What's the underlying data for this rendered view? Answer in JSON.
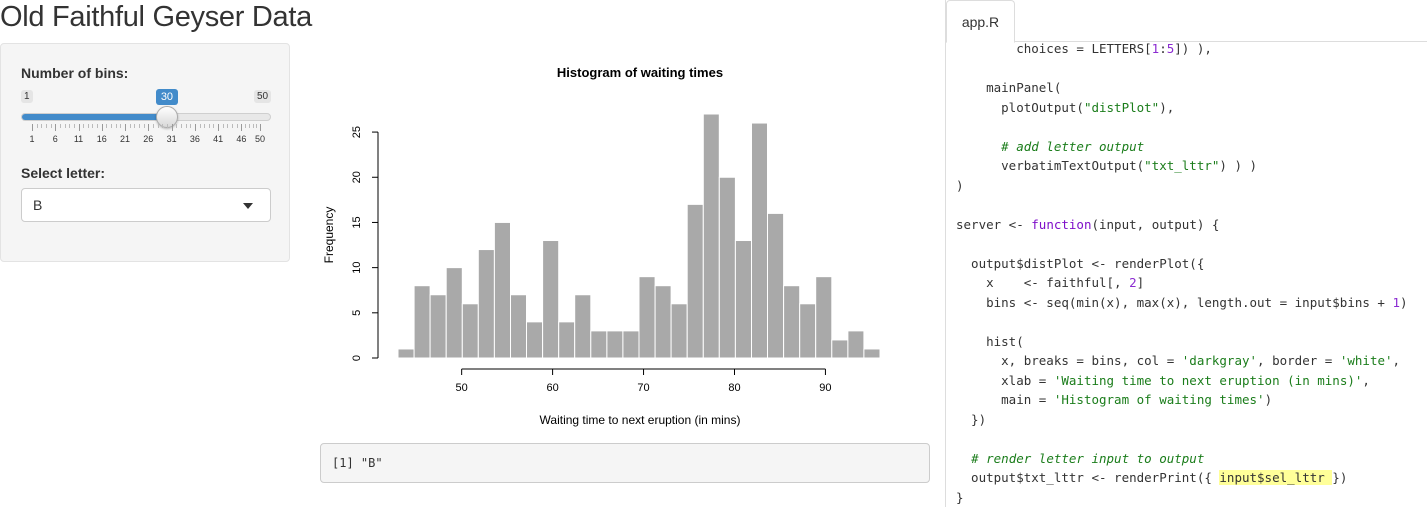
{
  "app": {
    "title": "Old Faithful Geyser Data"
  },
  "sidebar": {
    "bins_label": "Number of bins:",
    "slider": {
      "min": 1,
      "max": 50,
      "value": 30,
      "min_label": "1",
      "max_label": "50",
      "value_label": "30",
      "tick_labels": [
        "1",
        "6",
        "11",
        "16",
        "21",
        "26",
        "31",
        "36",
        "41",
        "46",
        "50"
      ],
      "accent_color": "#428bca"
    },
    "letter_label": "Select letter:",
    "select": {
      "value": "B",
      "caret_icon": "caret-down-icon"
    }
  },
  "chart_data": {
    "type": "bar",
    "title": "Histogram of waiting times",
    "xlabel": "Waiting time to next eruption (in mins)",
    "ylabel": "Frequency",
    "bin_edges": [
      43.0,
      44.77,
      46.53,
      48.3,
      50.07,
      51.83,
      53.6,
      55.37,
      57.13,
      58.9,
      60.67,
      62.43,
      64.2,
      65.97,
      67.73,
      69.5,
      71.27,
      73.03,
      74.8,
      76.57,
      78.33,
      80.1,
      81.87,
      83.63,
      85.4,
      87.17,
      88.93,
      90.7,
      92.47,
      94.23,
      96.0
    ],
    "values": [
      1,
      8,
      7,
      10,
      6,
      12,
      15,
      7,
      4,
      13,
      4,
      7,
      3,
      3,
      3,
      9,
      8,
      6,
      17,
      27,
      20,
      13,
      26,
      16,
      8,
      6,
      9,
      2,
      3,
      1
    ],
    "x_ticks": [
      50,
      60,
      70,
      80,
      90
    ],
    "y_ticks": [
      0,
      5,
      10,
      15,
      20,
      25
    ],
    "xlim": [
      43,
      96
    ],
    "ylim": [
      0,
      27
    ],
    "bar_color": "#a9a9a9",
    "border_color": "#ffffff"
  },
  "output": {
    "text": "[1] \"B\""
  },
  "code_panel": {
    "tab_label": "app.R",
    "lines": [
      [
        {
          "t": "        choices = LETTERS["
        },
        {
          "t": "1",
          "c": "c-num"
        },
        {
          "t": ":"
        },
        {
          "t": "5",
          "c": "c-num"
        },
        {
          "t": "]) ),"
        }
      ],
      [
        {
          "t": ""
        }
      ],
      [
        {
          "t": "    mainPanel("
        }
      ],
      [
        {
          "t": "      plotOutput("
        },
        {
          "t": "\"distPlot\"",
          "c": "c-str"
        },
        {
          "t": "),"
        }
      ],
      [
        {
          "t": ""
        }
      ],
      [
        {
          "t": "      "
        },
        {
          "t": "# add letter output",
          "c": "c-cmt"
        }
      ],
      [
        {
          "t": "      verbatimTextOutput("
        },
        {
          "t": "\"txt_lttr\"",
          "c": "c-str"
        },
        {
          "t": ") ) )"
        }
      ],
      [
        {
          "t": ")"
        }
      ],
      [
        {
          "t": ""
        }
      ],
      [
        {
          "t": "server <- "
        },
        {
          "t": "function",
          "c": "c-fn"
        },
        {
          "t": "(input, output) {"
        }
      ],
      [
        {
          "t": ""
        }
      ],
      [
        {
          "t": "  output$distPlot <- renderPlot({"
        }
      ],
      [
        {
          "t": "    x    <- faithful[, "
        },
        {
          "t": "2",
          "c": "c-num"
        },
        {
          "t": "]"
        }
      ],
      [
        {
          "t": "    bins <- seq(min(x), max(x), length.out = input$bins + "
        },
        {
          "t": "1",
          "c": "c-num"
        },
        {
          "t": ")"
        }
      ],
      [
        {
          "t": ""
        }
      ],
      [
        {
          "t": "    hist("
        }
      ],
      [
        {
          "t": "      x, breaks = bins, col = "
        },
        {
          "t": "'darkgray'",
          "c": "c-str"
        },
        {
          "t": ", border = "
        },
        {
          "t": "'white'",
          "c": "c-str"
        },
        {
          "t": ","
        }
      ],
      [
        {
          "t": "      xlab = "
        },
        {
          "t": "'Waiting time to next eruption (in mins)'",
          "c": "c-str"
        },
        {
          "t": ","
        }
      ],
      [
        {
          "t": "      main = "
        },
        {
          "t": "'Histogram of waiting times'",
          "c": "c-str"
        },
        {
          "t": ")"
        }
      ],
      [
        {
          "t": "  })"
        }
      ],
      [
        {
          "t": ""
        }
      ],
      [
        {
          "t": "  "
        },
        {
          "t": "# render letter input to output",
          "c": "c-cmt"
        }
      ],
      [
        {
          "t": "  output$txt_lttr <- renderPrint({ "
        },
        {
          "t": "input$sel_lttr ",
          "c": "c-hl"
        },
        {
          "t": "})"
        }
      ],
      [
        {
          "t": "}"
        }
      ]
    ]
  }
}
